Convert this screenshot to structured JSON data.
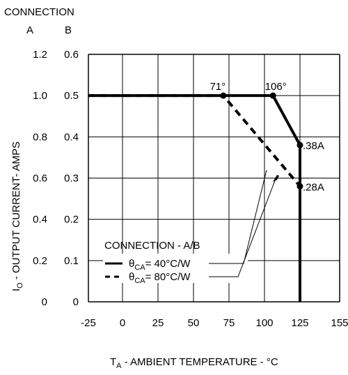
{
  "chart_data": {
    "type": "line",
    "header": {
      "connection_label": "CONNECTION",
      "col_a": "A",
      "col_b": "B"
    },
    "x_axis": {
      "ticks": [
        -25,
        0,
        25,
        50,
        75,
        100,
        125,
        155
      ],
      "lim": [
        -25,
        155
      ],
      "label_main": "T",
      "label_sub": "A",
      "label_rest": " - AMBIENT TEMPERATURE - °C"
    },
    "y_axis": {
      "ticks_a": [
        "0",
        "0.2",
        "0.4",
        "0.6",
        "0.8",
        "1.0",
        "1.2"
      ],
      "ticks_b": [
        "0",
        "0.1",
        "0.2",
        "0.3",
        "0.4",
        "0.5",
        "0.6"
      ],
      "lim_b": [
        0,
        0.6
      ],
      "label_main": "I",
      "label_sub": "O",
      "label_rest": " - OUTPUT CURRENT- AMPS"
    },
    "grid": true,
    "series": [
      {
        "id": "solid",
        "legend_prefix": "θ",
        "legend_sub": "CA",
        "legend_rest": "= 40°C/W",
        "style": "solid",
        "x": [
          -25,
          106,
          125,
          125
        ],
        "y": [
          0.5,
          0.5,
          0.38,
          0
        ]
      },
      {
        "id": "dashed",
        "legend_prefix": "θ",
        "legend_sub": "CA",
        "legend_rest": "= 80°C/W",
        "style": "dashed",
        "x": [
          -25,
          71,
          125
        ],
        "y": [
          0.5,
          0.5,
          0.28
        ]
      }
    ],
    "markers": [
      {
        "x": 71,
        "y": 0.5
      },
      {
        "x": 106,
        "y": 0.5
      },
      {
        "x": 125,
        "y": 0.38
      },
      {
        "x": 125,
        "y": 0.28
      }
    ],
    "annotations": [
      {
        "text": "71°",
        "x": 71,
        "y": 0.5
      },
      {
        "text": "106°",
        "x": 106,
        "y": 0.5
      },
      {
        "text": ".38A",
        "x": 125,
        "y": 0.38
      },
      {
        "text": ".28A",
        "x": 125,
        "y": 0.28
      }
    ],
    "legend": {
      "title": "CONNECTION - A/B",
      "position": "bottom-left"
    }
  }
}
